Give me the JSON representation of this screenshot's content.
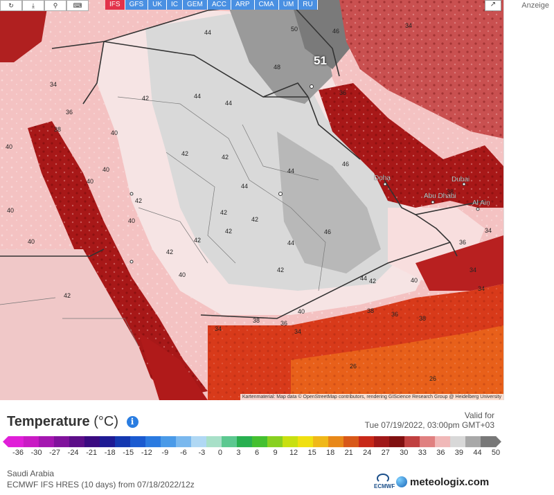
{
  "header": {
    "models": [
      {
        "label": "IFS",
        "active": true
      },
      {
        "label": "GFS",
        "active": false
      },
      {
        "label": "UK",
        "active": false
      },
      {
        "label": "IC",
        "active": false
      },
      {
        "label": "GEM",
        "active": false
      },
      {
        "label": "ACC",
        "active": false
      },
      {
        "label": "ARP",
        "active": false
      },
      {
        "label": "CMA",
        "active": false
      },
      {
        "label": "UM",
        "active": false
      },
      {
        "label": "RU",
        "active": false
      }
    ],
    "toolbar_icons": [
      "refresh-icon",
      "download-icon",
      "zoom-icon",
      "keyboard-icon"
    ],
    "share_icon": "share-icon"
  },
  "sidebar": {
    "ad_label": "Anzeige"
  },
  "map": {
    "highlight_value": "51",
    "attribution": "Kartenmaterial: Map data © OpenStreetMap contributors, rendering GIScience Research Group @ Heidelberg University",
    "city_labels": [
      {
        "name": "Doha"
      },
      {
        "name": "Dubai"
      },
      {
        "name": "Abu Dhabi"
      },
      {
        "name": "Al Ain"
      }
    ],
    "temperature_labels": [
      "44",
      "50",
      "48",
      "46",
      "40",
      "42",
      "38",
      "34",
      "36",
      "26"
    ]
  },
  "legend": {
    "title": "Temperature",
    "unit": "(°C)",
    "info_icon": "info-icon",
    "valid_label": "Valid for",
    "valid_time": "Tue 07/19/2022, 03:00pm GMT+03",
    "ticks": [
      "-36",
      "-30",
      "-27",
      "-24",
      "-21",
      "-18",
      "-15",
      "-12",
      "-9",
      "-6",
      "-3",
      "0",
      "3",
      "6",
      "9",
      "12",
      "15",
      "18",
      "21",
      "24",
      "27",
      "30",
      "33",
      "36",
      "39",
      "44",
      "50"
    ],
    "colors": [
      "#e01ed8",
      "#c91ac4",
      "#a416b0",
      "#80129c",
      "#5c0e88",
      "#3a0a80",
      "#1e1a94",
      "#1438b0",
      "#1a5ad0",
      "#2a7ae0",
      "#4a9ae8",
      "#7ab8ee",
      "#b0d8f4",
      "#a8e0c8",
      "#5cc890",
      "#28b050",
      "#44c030",
      "#88d020",
      "#c8e010",
      "#f0e010",
      "#f0b818",
      "#e88818",
      "#d85818",
      "#c82818",
      "#a01818",
      "#801010",
      "#c04040",
      "#e08080",
      "#f0b8b8",
      "#d8d8d8",
      "#a8a8a8",
      "#787878"
    ],
    "region": "Saudi Arabia",
    "model_run": "ECMWF IFS HRES (10 days) from 07/18/2022/12z",
    "ecmwf_label": "ECMWF",
    "brand": "meteologix.com"
  }
}
